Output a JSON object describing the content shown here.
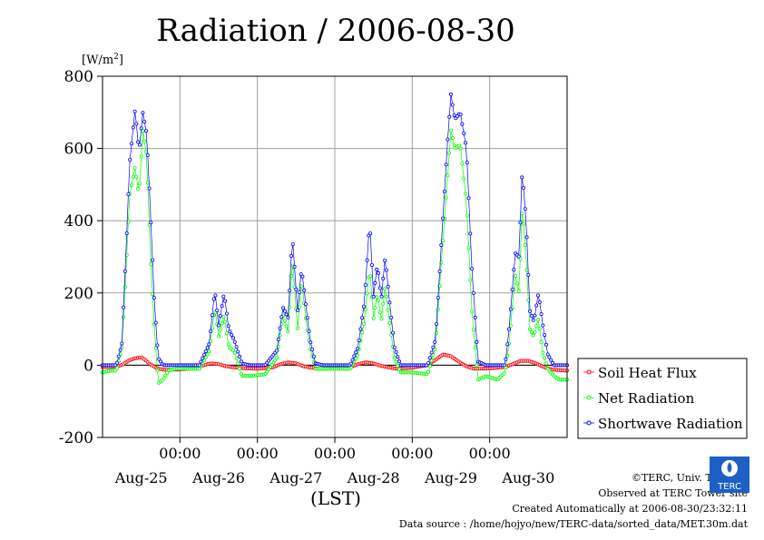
{
  "chart_data": {
    "type": "line",
    "title": "Radiation / 2006-08-30",
    "ylabel": "[W/m",
    "ylabel_sup": "2",
    "ylabel_close": "]",
    "xlabel": "(LST)",
    "ylim": [
      -200,
      800
    ],
    "xlim": [
      0,
      6
    ],
    "y_ticks": [
      -200,
      0,
      200,
      400,
      600,
      800
    ],
    "y_tick_labels": [
      "-200",
      "0",
      "200",
      "400",
      "600",
      "800"
    ],
    "x_time_ticks": [
      1,
      2,
      3,
      4,
      5
    ],
    "x_time_label": "00:00",
    "x_day_positions": [
      0.5,
      1.5,
      2.5,
      3.5,
      4.5,
      5.5
    ],
    "x_day_labels": [
      "Aug-25",
      "Aug-26",
      "Aug-27",
      "Aug-28",
      "Aug-29",
      "Aug-30"
    ],
    "grid": true,
    "legend_position": "right",
    "series": [
      {
        "name": "Soil Heat Flux",
        "color": "#ff0000",
        "x": [
          0,
          0.1,
          0.2,
          0.27,
          0.33,
          0.4,
          0.5,
          0.55,
          0.6,
          0.7,
          0.8,
          1.0,
          1.2,
          1.3,
          1.4,
          1.5,
          1.6,
          1.7,
          1.8,
          2.0,
          2.2,
          2.3,
          2.4,
          2.5,
          2.6,
          2.7,
          2.8,
          3.0,
          3.2,
          3.3,
          3.4,
          3.5,
          3.6,
          3.7,
          3.8,
          4.0,
          4.2,
          4.3,
          4.4,
          4.5,
          4.6,
          4.7,
          4.8,
          5.0,
          5.2,
          5.3,
          5.4,
          5.5,
          5.6,
          5.7,
          5.8,
          6.0
        ],
        "y": [
          -5,
          -5,
          -3,
          3,
          12,
          18,
          22,
          15,
          5,
          -8,
          -13,
          -12,
          -8,
          0,
          5,
          3,
          -3,
          -6,
          -8,
          -10,
          -6,
          3,
          8,
          5,
          -3,
          -7,
          -10,
          -9,
          -5,
          3,
          8,
          5,
          -2,
          -6,
          -10,
          -7,
          0,
          15,
          30,
          25,
          10,
          -3,
          -10,
          -9,
          -5,
          3,
          12,
          12,
          5,
          -5,
          -12,
          -15
        ]
      },
      {
        "name": "Net Radiation",
        "color": "#00ff00",
        "x": [
          0,
          0.1,
          0.18,
          0.25,
          0.3,
          0.35,
          0.42,
          0.47,
          0.52,
          0.57,
          0.62,
          0.67,
          0.72,
          0.78,
          0.85,
          0.95,
          1.1,
          1.25,
          1.38,
          1.45,
          1.5,
          1.57,
          1.63,
          1.7,
          1.8,
          1.9,
          2.1,
          2.25,
          2.33,
          2.4,
          2.45,
          2.52,
          2.57,
          2.63,
          2.68,
          2.75,
          2.85,
          3.0,
          3.2,
          3.3,
          3.38,
          3.45,
          3.5,
          3.55,
          3.6,
          3.65,
          3.7,
          3.77,
          3.85,
          4.0,
          4.2,
          4.3,
          4.38,
          4.45,
          4.5,
          4.55,
          4.62,
          4.7,
          4.77,
          4.85,
          4.95,
          5.1,
          5.2,
          5.25,
          5.33,
          5.38,
          5.42,
          5.47,
          5.52,
          5.57,
          5.63,
          5.68,
          5.75,
          5.83,
          5.9,
          6.0
        ],
        "y": [
          -20,
          -15,
          -15,
          50,
          250,
          470,
          550,
          470,
          650,
          580,
          300,
          100,
          -50,
          -40,
          -15,
          -10,
          -10,
          -10,
          40,
          160,
          80,
          140,
          50,
          40,
          -30,
          -30,
          -25,
          20,
          140,
          90,
          300,
          100,
          240,
          120,
          50,
          -10,
          -10,
          -10,
          -10,
          30,
          120,
          270,
          130,
          200,
          120,
          220,
          130,
          20,
          -20,
          -20,
          -25,
          50,
          300,
          500,
          650,
          600,
          610,
          450,
          150,
          -40,
          -30,
          -40,
          -20,
          60,
          250,
          200,
          440,
          300,
          100,
          80,
          130,
          40,
          -10,
          -30,
          -40,
          -40
        ]
      },
      {
        "name": "Shortwave Radiation",
        "color": "#0000ff",
        "x": [
          0,
          0.1,
          0.18,
          0.25,
          0.3,
          0.35,
          0.42,
          0.47,
          0.52,
          0.57,
          0.62,
          0.67,
          0.72,
          0.78,
          0.85,
          0.95,
          1.1,
          1.25,
          1.38,
          1.45,
          1.5,
          1.57,
          1.63,
          1.7,
          1.8,
          1.9,
          2.1,
          2.25,
          2.33,
          2.4,
          2.45,
          2.52,
          2.57,
          2.63,
          2.68,
          2.75,
          2.85,
          3.0,
          3.2,
          3.3,
          3.38,
          3.45,
          3.5,
          3.55,
          3.6,
          3.65,
          3.7,
          3.77,
          3.85,
          4.0,
          4.2,
          4.3,
          4.38,
          4.45,
          4.5,
          4.55,
          4.62,
          4.7,
          4.77,
          4.85,
          4.95,
          5.1,
          5.2,
          5.25,
          5.33,
          5.38,
          5.42,
          5.47,
          5.52,
          5.57,
          5.63,
          5.68,
          5.75,
          5.83,
          5.9,
          6.0
        ],
        "y": [
          0,
          0,
          0,
          60,
          300,
          560,
          710,
          590,
          700,
          640,
          420,
          170,
          20,
          0,
          0,
          0,
          0,
          0,
          60,
          210,
          110,
          200,
          100,
          70,
          5,
          0,
          0,
          40,
          160,
          130,
          360,
          150,
          270,
          160,
          70,
          5,
          0,
          0,
          0,
          50,
          170,
          400,
          190,
          280,
          180,
          300,
          190,
          50,
          0,
          0,
          0,
          70,
          350,
          600,
          750,
          680,
          700,
          600,
          270,
          10,
          0,
          0,
          0,
          100,
          310,
          300,
          540,
          400,
          150,
          120,
          200,
          120,
          30,
          0,
          0,
          0
        ]
      }
    ]
  },
  "footer": {
    "copyright": "©TERC, Univ. Tsukuba",
    "observed": "Observed at TERC Tower site",
    "created": "Created Automatically at 2006-08-30/23:32:11",
    "source": "Data source : /home/hojyo/new/TERC-data/sorted_data/MET.30m.dat",
    "logo_text": "TERC"
  }
}
